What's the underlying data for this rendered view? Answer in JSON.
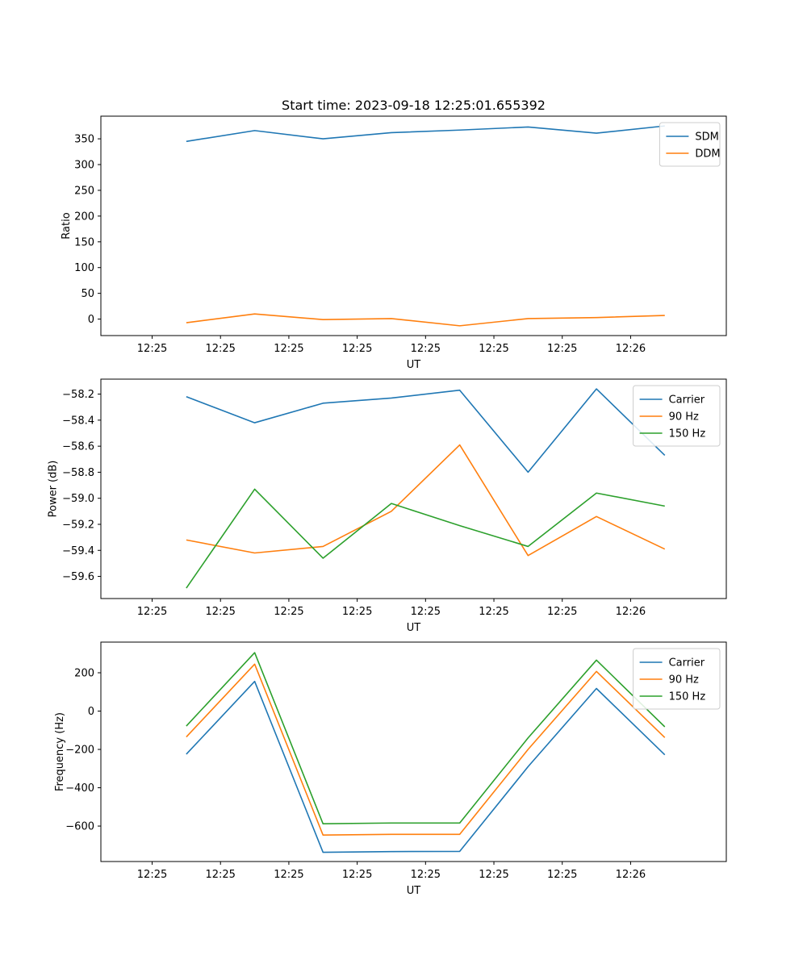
{
  "chart_data": [
    {
      "type": "line",
      "title": "Start time: 2023-09-18 12:25:01.655392",
      "xlabel": "UT",
      "ylabel": "Ratio",
      "xticks": [
        "12:25",
        "12:25",
        "12:25",
        "12:25",
        "12:25",
        "12:25",
        "12:25"
      ],
      "xticks_end": "12:26",
      "xlim": [
        -0.75,
        8.4
      ],
      "ylim": [
        -32,
        394
      ],
      "yticks": [
        0,
        50,
        100,
        150,
        200,
        250,
        300,
        350
      ],
      "ytick_labels": [
        "0",
        "50",
        "100",
        "150",
        "200",
        "250",
        "300",
        "350"
      ],
      "x": [
        0.5,
        1.5,
        2.5,
        3.5,
        4.5,
        5.5,
        6.5,
        7.5
      ],
      "legend_position": "top-right",
      "series": [
        {
          "name": "SDM",
          "color": "#1f77b4",
          "values": [
            345,
            366,
            350,
            362,
            367,
            373,
            361,
            375
          ]
        },
        {
          "name": "DDM",
          "color": "#ff7f0e",
          "values": [
            -7,
            10,
            -1,
            1,
            -13,
            1,
            3,
            7
          ]
        }
      ]
    },
    {
      "type": "line",
      "title": "",
      "xlabel": "UT",
      "ylabel": "Power (dB)",
      "xticks": [
        "12:25",
        "12:25",
        "12:25",
        "12:25",
        "12:25",
        "12:25",
        "12:25"
      ],
      "xticks_end": "12:26",
      "xlim": [
        -0.75,
        8.4
      ],
      "ylim": [
        -59.77,
        -58.085
      ],
      "yticks": [
        -59.6,
        -59.4,
        -59.2,
        -59.0,
        -58.8,
        -58.6,
        -58.4,
        -58.2
      ],
      "ytick_labels": [
        "−59.6",
        "−59.4",
        "−59.2",
        "−59.0",
        "−58.8",
        "−58.6",
        "−58.4",
        "−58.2"
      ],
      "x": [
        0.5,
        1.5,
        2.5,
        3.5,
        4.5,
        5.5,
        6.5,
        7.5
      ],
      "legend_position": "top-right",
      "series": [
        {
          "name": "Carrier",
          "color": "#1f77b4",
          "values": [
            -58.22,
            -58.42,
            -58.27,
            -58.23,
            -58.17,
            -58.8,
            -58.16,
            -58.67
          ]
        },
        {
          "name": "90 Hz",
          "color": "#ff7f0e",
          "values": [
            -59.32,
            -59.42,
            -59.37,
            -59.1,
            -58.59,
            -59.44,
            -59.14,
            -59.39
          ]
        },
        {
          "name": "150 Hz",
          "color": "#2ca02c",
          "values": [
            -59.69,
            -58.93,
            -59.46,
            -59.04,
            -59.21,
            -59.37,
            -58.96,
            -59.06
          ]
        }
      ]
    },
    {
      "type": "line",
      "title": "",
      "xlabel": "UT",
      "ylabel": "Frequency (Hz)",
      "xticks": [
        "12:25",
        "12:25",
        "12:25",
        "12:25",
        "12:25",
        "12:25",
        "12:25"
      ],
      "xticks_end": "12:26",
      "xlim": [
        -0.75,
        8.4
      ],
      "ylim": [
        -785,
        360
      ],
      "yticks": [
        -600,
        -400,
        -200,
        0,
        200
      ],
      "ytick_labels": [
        "−600",
        "−400",
        "−200",
        "0",
        "200"
      ],
      "x": [
        0.5,
        1.5,
        2.5,
        3.5,
        4.5,
        5.5,
        6.5,
        7.5
      ],
      "legend_position": "top-right",
      "series": [
        {
          "name": "Carrier",
          "color": "#1f77b4",
          "values": [
            -225,
            155,
            -737,
            -733,
            -732,
            -290,
            118,
            -228
          ]
        },
        {
          "name": "90 Hz",
          "color": "#ff7f0e",
          "values": [
            -135,
            245,
            -647,
            -643,
            -643,
            -200,
            207,
            -138
          ]
        },
        {
          "name": "150 Hz",
          "color": "#2ca02c",
          "values": [
            -78,
            305,
            -588,
            -584,
            -584,
            -140,
            266,
            -82
          ]
        }
      ]
    }
  ]
}
